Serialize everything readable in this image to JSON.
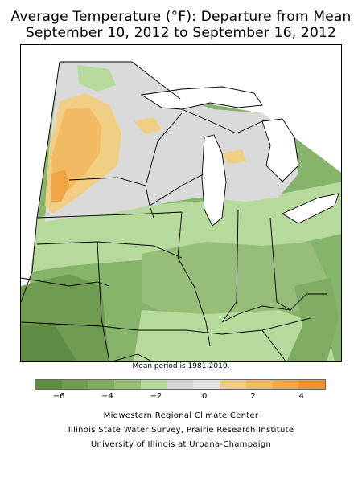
{
  "title_line1": "Average Temperature (°F): Departure from Mean",
  "title_line2": "September 10, 2012 to September 16, 2012",
  "mean_note": "Mean period is 1981-2010.",
  "legend": {
    "colors": [
      "#5e8c44",
      "#6f9b52",
      "#80ab63",
      "#96be79",
      "#b6d99c",
      "#d6d6d6",
      "#e2e2e2",
      "#f0cf84",
      "#f2bb63",
      "#f0a547",
      "#f0922e"
    ],
    "ticks": [
      {
        "label": "−6",
        "value": -6
      },
      {
        "label": "−4",
        "value": -4
      },
      {
        "label": "−2",
        "value": -2
      },
      {
        "label": "0",
        "value": 0
      },
      {
        "label": "2",
        "value": 2
      },
      {
        "label": "4",
        "value": 4
      }
    ],
    "range": [
      -7,
      5
    ]
  },
  "credits": {
    "line1": "Midwestern Regional Climate Center",
    "line2": "Illinois State Water Survey, Prairie Research Institute",
    "line3": "University of Illinois at Urbana-Champaign"
  }
}
